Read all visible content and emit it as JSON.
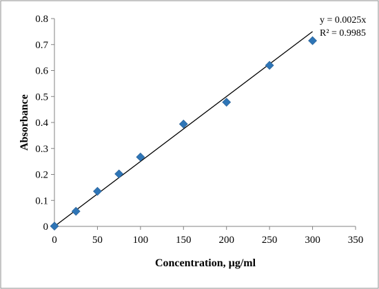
{
  "chart_data": {
    "type": "scatter",
    "xlabel": "Concentration, µg/ml",
    "ylabel": "Absorbance",
    "xlim": [
      0,
      350
    ],
    "ylim": [
      0,
      0.8
    ],
    "x_ticks": [
      0,
      50,
      100,
      150,
      200,
      250,
      300,
      350
    ],
    "y_ticks": [
      0,
      0.1,
      0.2,
      0.3,
      0.4,
      0.5,
      0.6,
      0.7,
      0.8
    ],
    "x_tick_labels": [
      "0",
      "50",
      "100",
      "150",
      "200",
      "250",
      "300",
      "350"
    ],
    "y_tick_labels": [
      "0",
      "0.1",
      "0.2",
      "0.3",
      "0.4",
      "0.5",
      "0.6",
      "0.7",
      "0.8"
    ],
    "grid": false,
    "legend": "none",
    "marker_color": "#2e75b6",
    "x": [
      0,
      25,
      50,
      75,
      100,
      150,
      200,
      250,
      300
    ],
    "y": [
      0.001,
      0.058,
      0.135,
      0.202,
      0.267,
      0.394,
      0.478,
      0.62,
      0.715
    ],
    "trendline": {
      "type": "linear",
      "slope": 0.0025,
      "intercept": 0,
      "x_range": [
        0,
        300
      ],
      "equation": "y = 0.0025x",
      "r_squared": "R² = 0.9985"
    }
  }
}
